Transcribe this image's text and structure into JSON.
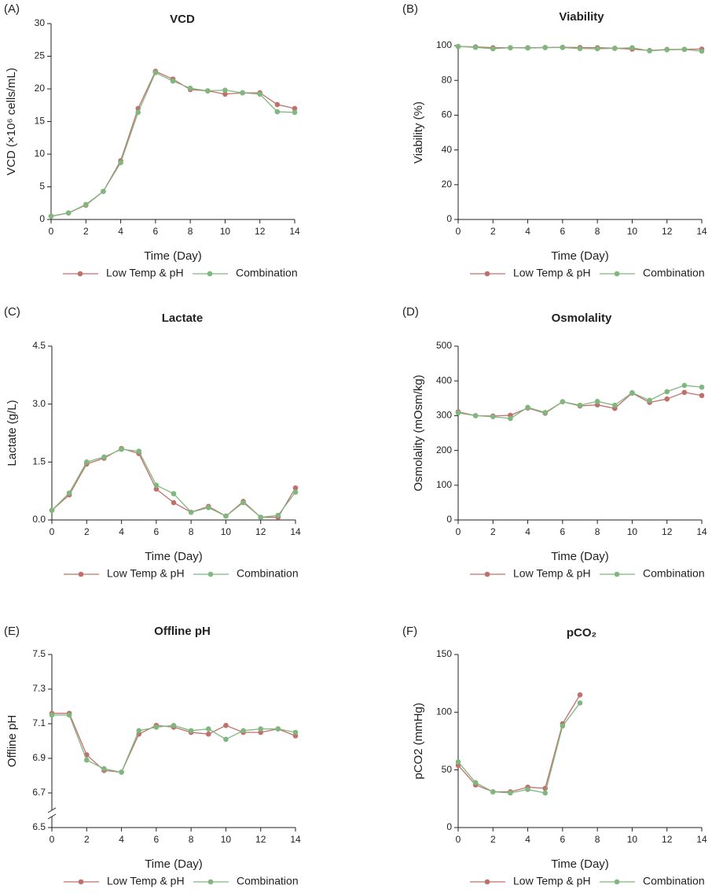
{
  "chart_data": [
    {
      "type": "line",
      "panel": "(A)",
      "title": "VCD",
      "y_label": "VCD (×10⁶ cells/mL)",
      "x_label": "Time (Day)",
      "x": [
        0,
        1,
        2,
        3,
        4,
        5,
        6,
        7,
        8,
        9,
        10,
        11,
        12,
        13,
        14
      ],
      "xlim": [
        0,
        14
      ],
      "xticks": [
        0,
        2,
        4,
        6,
        8,
        10,
        12,
        14
      ],
      "ylim": [
        0,
        30
      ],
      "yticks": [
        0,
        5,
        10,
        15,
        20,
        25,
        30
      ],
      "series": [
        {
          "name": "Low Temp & pH",
          "color": "#c0706a",
          "values": [
            0.5,
            1.0,
            2.2,
            4.3,
            9.0,
            17.0,
            22.7,
            21.5,
            19.9,
            19.7,
            19.2,
            19.4,
            19.4,
            17.6,
            17.0
          ]
        },
        {
          "name": "Combination",
          "color": "#7fb77e",
          "values": [
            0.5,
            1.0,
            2.3,
            4.3,
            8.7,
            16.4,
            22.5,
            21.2,
            20.1,
            19.7,
            19.8,
            19.4,
            19.2,
            16.5,
            16.4
          ]
        }
      ]
    },
    {
      "type": "line",
      "panel": "(B)",
      "title": "Viability",
      "y_label": "Viability (%)",
      "x_label": "Time (Day)",
      "x": [
        0,
        1,
        2,
        3,
        4,
        5,
        6,
        7,
        8,
        9,
        10,
        11,
        12,
        13,
        14
      ],
      "xlim": [
        0,
        14
      ],
      "xticks": [
        0,
        2,
        4,
        6,
        8,
        10,
        12,
        14
      ],
      "ylim": [
        0,
        100
      ],
      "yticks": [
        0,
        20,
        40,
        60,
        80,
        100
      ],
      "series": [
        {
          "name": "Low Temp & pH",
          "color": "#c0706a",
          "values": [
            99.5,
            99.3,
            98.8,
            98.8,
            98.8,
            98.9,
            99.0,
            98.9,
            98.8,
            98.5,
            98.0,
            97.2,
            97.8,
            97.9,
            98.0
          ]
        },
        {
          "name": "Combination",
          "color": "#7fb77e",
          "values": [
            99.5,
            99.0,
            98.2,
            98.8,
            98.6,
            98.9,
            98.9,
            98.3,
            98.2,
            98.4,
            98.8,
            97.0,
            97.6,
            97.8,
            96.8
          ]
        }
      ]
    },
    {
      "type": "line",
      "panel": "(C)",
      "title": "Lactate",
      "y_label": "Lactate (g/L)",
      "x_label": "Time (Day)",
      "x": [
        0,
        1,
        2,
        3,
        4,
        5,
        6,
        7,
        8,
        9,
        10,
        11,
        12,
        13,
        14
      ],
      "xlim": [
        0,
        14
      ],
      "xticks": [
        0,
        2,
        4,
        6,
        8,
        10,
        12,
        14
      ],
      "ylim": [
        0,
        4.5
      ],
      "yticks": [
        {
          "value": 0,
          "label": "0.0"
        },
        1.5,
        {
          "value": 3,
          "label": "3.0"
        },
        4.5
      ],
      "series": [
        {
          "name": "Low Temp & pH",
          "color": "#c0706a",
          "values": [
            0.25,
            0.65,
            1.45,
            1.6,
            1.85,
            1.72,
            0.8,
            0.45,
            0.2,
            0.35,
            0.1,
            0.48,
            0.07,
            0.07,
            0.83
          ]
        },
        {
          "name": "Combination",
          "color": "#7fb77e",
          "values": [
            0.25,
            0.7,
            1.5,
            1.63,
            1.83,
            1.78,
            0.9,
            0.68,
            0.2,
            0.32,
            0.1,
            0.45,
            0.07,
            0.12,
            0.72
          ]
        }
      ]
    },
    {
      "type": "line",
      "panel": "(D)",
      "title": "Osmolality",
      "y_label": "Osmolality (mOsm/kg)",
      "x_label": "Time (Day)",
      "x": [
        0,
        1,
        2,
        3,
        4,
        5,
        6,
        7,
        8,
        9,
        10,
        11,
        12,
        13,
        14
      ],
      "xlim": [
        0,
        14
      ],
      "xticks": [
        0,
        2,
        4,
        6,
        8,
        10,
        12,
        14
      ],
      "ylim": [
        0,
        500
      ],
      "yticks": [
        0,
        100,
        200,
        300,
        400,
        500
      ],
      "series": [
        {
          "name": "Low Temp & pH",
          "color": "#c0706a",
          "values": [
            311,
            300,
            299,
            301,
            322,
            307,
            340,
            328,
            331,
            321,
            365,
            338,
            348,
            367,
            358
          ]
        },
        {
          "name": "Combination",
          "color": "#7fb77e",
          "values": [
            308,
            300,
            297,
            292,
            324,
            309,
            340,
            330,
            341,
            330,
            366,
            344,
            369,
            387,
            382
          ]
        }
      ]
    },
    {
      "type": "line",
      "panel": "(E)",
      "title": "Offline pH",
      "y_label": "Offline pH",
      "x_label": "Time (Day)",
      "x": [
        0,
        1,
        2,
        3,
        4,
        5,
        6,
        7,
        8,
        9,
        10,
        11,
        12,
        13,
        14
      ],
      "xlim": [
        0,
        14
      ],
      "xticks": [
        0,
        2,
        4,
        6,
        8,
        10,
        12,
        14
      ],
      "ylim": [
        6.5,
        7.5
      ],
      "yticks": [
        6.5,
        6.7,
        6.9,
        7.1,
        7.3,
        7.5
      ],
      "axis_break": true,
      "series": [
        {
          "name": "Low Temp & pH",
          "color": "#c0706a",
          "values": [
            7.16,
            7.16,
            6.92,
            6.83,
            6.82,
            7.04,
            7.09,
            7.08,
            7.05,
            7.04,
            7.09,
            7.05,
            7.05,
            7.07,
            7.03
          ]
        },
        {
          "name": "Combination",
          "color": "#7fb77e",
          "values": [
            7.15,
            7.15,
            6.89,
            6.84,
            6.82,
            7.06,
            7.08,
            7.09,
            7.06,
            7.07,
            7.01,
            7.06,
            7.07,
            7.07,
            7.05
          ]
        }
      ]
    },
    {
      "type": "line",
      "panel": "(F)",
      "title": "pCO₂",
      "y_label": "pCO2 (mmHg)",
      "x_label": "Time (Day)",
      "x": [
        0,
        1,
        2,
        3,
        4,
        5,
        6,
        7
      ],
      "xlim": [
        0,
        14
      ],
      "xticks": [
        0,
        2,
        4,
        6,
        8,
        10,
        12,
        14
      ],
      "ylim": [
        0,
        150
      ],
      "yticks": [
        0,
        50,
        100,
        150
      ],
      "series": [
        {
          "name": "Low Temp & pH",
          "color": "#c0706a",
          "values": [
            54,
            37,
            31,
            31,
            35,
            34,
            90,
            115
          ]
        },
        {
          "name": "Combination",
          "color": "#7fb77e",
          "values": [
            57,
            39,
            31,
            30,
            33,
            30,
            88,
            108
          ]
        }
      ]
    }
  ]
}
